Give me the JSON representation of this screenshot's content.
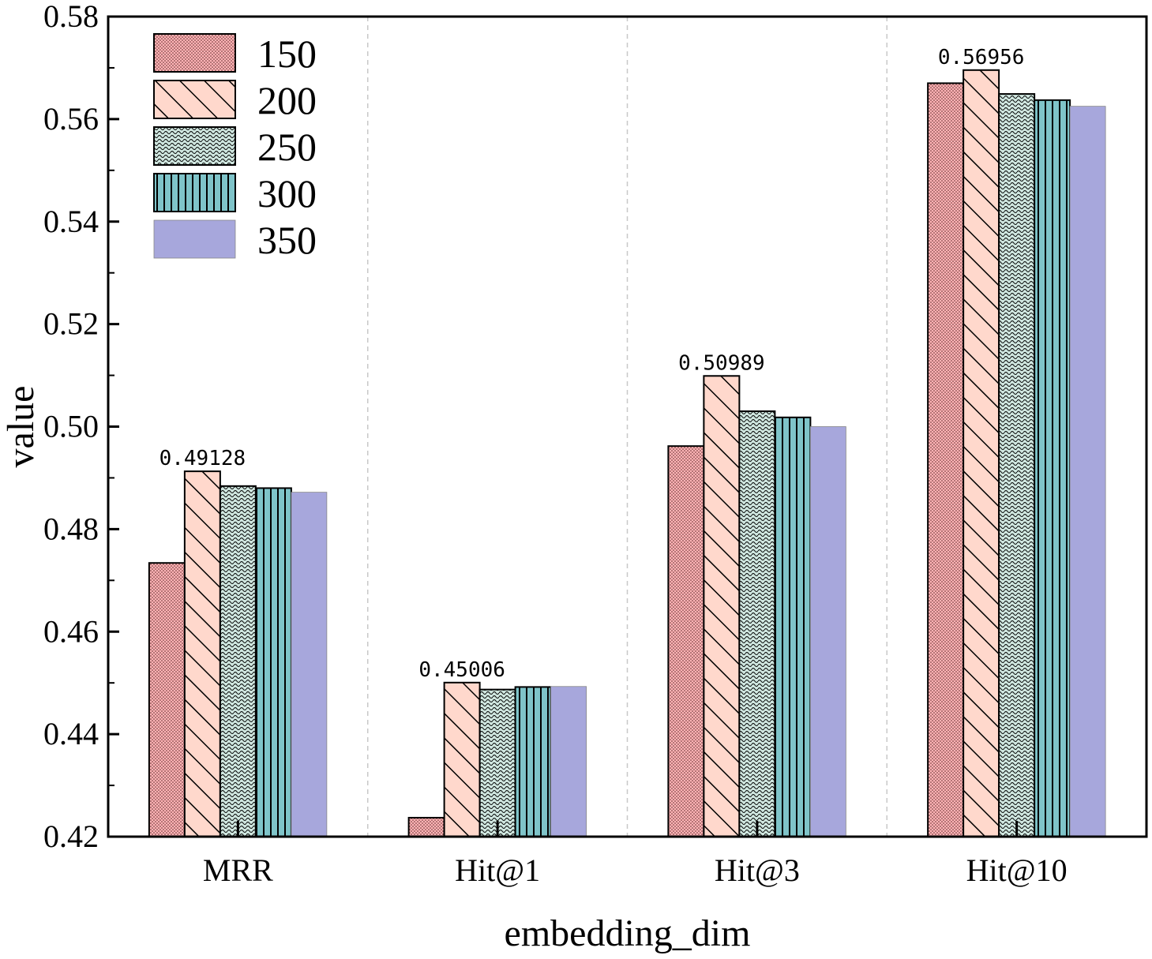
{
  "chart_data": {
    "type": "bar",
    "xlabel": "embedding_dim",
    "ylabel": "value",
    "ylim": [
      0.42,
      0.58
    ],
    "yticks": [
      "0.42",
      "0.44",
      "0.46",
      "0.48",
      "0.50",
      "0.52",
      "0.54",
      "0.56",
      "0.58"
    ],
    "categories": [
      "MRR",
      "Hit@1",
      "Hit@3",
      "Hit@10"
    ],
    "series": [
      {
        "name": "150",
        "values": [
          0.4734,
          0.4237,
          0.4962,
          0.567
        ],
        "color": "#ffb3b5",
        "pattern": "dots"
      },
      {
        "name": "200",
        "values": [
          0.49128,
          0.45006,
          0.50989,
          0.56956
        ],
        "color": "#ffd8cc",
        "pattern": "diagonal-hatch"
      },
      {
        "name": "250",
        "values": [
          0.4884,
          0.4487,
          0.503,
          0.5649
        ],
        "color": "#cfe6df",
        "pattern": "waves"
      },
      {
        "name": "300",
        "values": [
          0.488,
          0.4492,
          0.5018,
          0.5637
        ],
        "color": "#7fc4c9",
        "pattern": "vertical-lines"
      },
      {
        "name": "350",
        "values": [
          0.4872,
          0.4493,
          0.5,
          0.5625
        ],
        "color": "#a7a7dc",
        "pattern": "none"
      }
    ],
    "annotations": [
      "0.49128",
      "0.45006",
      "0.50989",
      "0.56956"
    ],
    "legend_position": "top-left",
    "grid": "vertical dashed separators between categories"
  }
}
